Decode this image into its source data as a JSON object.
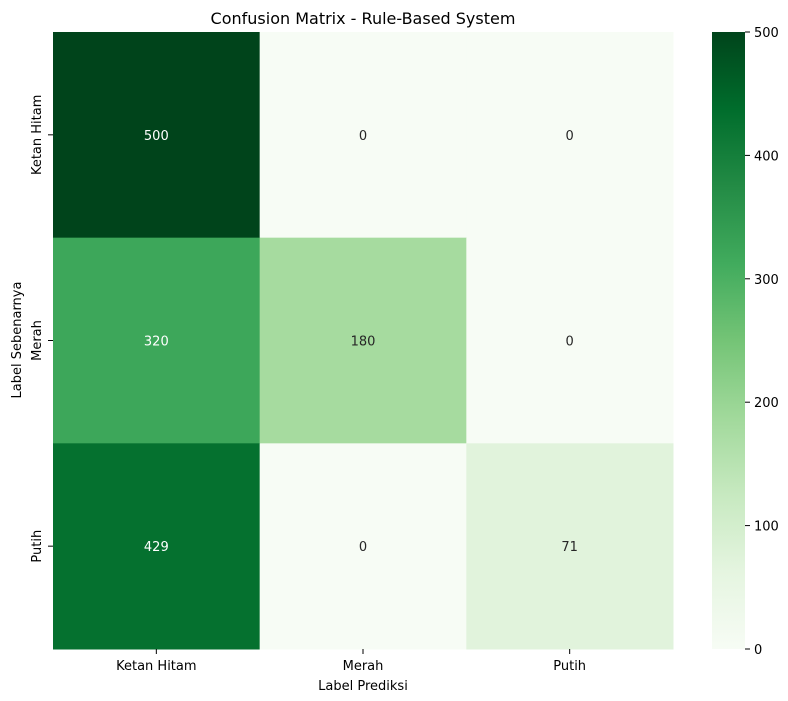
{
  "chart_data": {
    "type": "heatmap",
    "title": "Confusion Matrix - Rule-Based System",
    "xlabel": "Label Prediksi",
    "ylabel": "Label Sebenarnya",
    "x_categories": [
      "Ketan Hitam",
      "Merah",
      "Putih"
    ],
    "y_categories": [
      "Ketan Hitam",
      "Merah",
      "Putih"
    ],
    "values": [
      [
        500,
        0,
        0
      ],
      [
        320,
        180,
        0
      ],
      [
        429,
        0,
        71
      ]
    ],
    "colorbar": {
      "range": [
        0,
        500
      ],
      "ticks": [
        0,
        100,
        200,
        300,
        400,
        500
      ],
      "colormap": "Greens",
      "color_low": "#f7fcf5",
      "color_high": "#00441b"
    }
  }
}
